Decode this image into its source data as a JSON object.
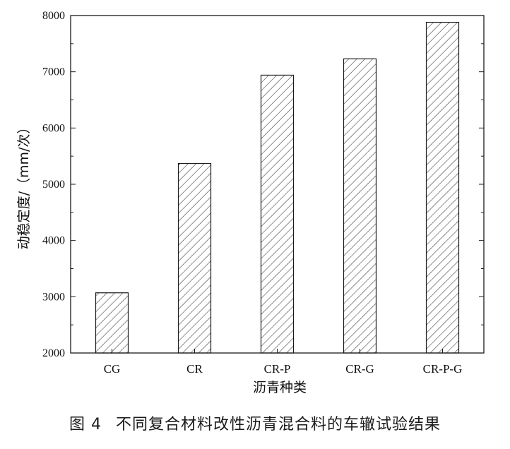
{
  "caption": {
    "figure_number": "图 4",
    "text": "不同复合材料改性沥青混合料的车辙试验结果"
  },
  "chart_data": {
    "type": "bar",
    "categories": [
      "CG",
      "CR",
      "CR-P",
      "CR-G",
      "CR-P-G"
    ],
    "values": [
      3070,
      5370,
      6940,
      7230,
      7880
    ],
    "xlabel": "沥青种类",
    "ylabel": "动稳定度/（mm/次）",
    "ylim": [
      2000,
      8000
    ],
    "yticks": [
      2000,
      3000,
      4000,
      5000,
      6000,
      7000,
      8000
    ],
    "bar_fill": "diagonal hatch",
    "grid": false,
    "legend": "none",
    "colors": {
      "bar_stroke": "#1a1a1a",
      "hatch": "#333333",
      "axis": "#1a1a1a"
    }
  }
}
